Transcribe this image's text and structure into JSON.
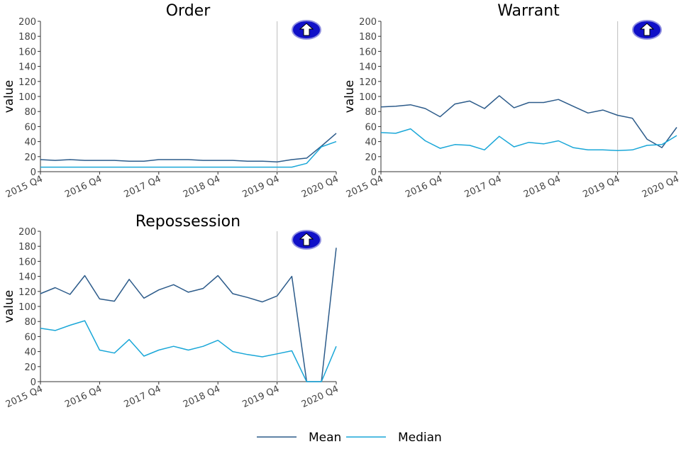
{
  "colors": {
    "mean": "#2c5b8a",
    "median": "#1aa7d8",
    "axis": "#333333",
    "vline": "#c8c8c8",
    "badge_fill": "#1010c8",
    "badge_ring": "#9090e0"
  },
  "legend": [
    {
      "key": "mean",
      "label": "Mean"
    },
    {
      "key": "median",
      "label": "Median"
    }
  ],
  "chart_data": [
    {
      "type": "line",
      "title": "Order",
      "ylabel": "value",
      "xlabel": "",
      "ylim": [
        0,
        200
      ],
      "yticks": [
        0,
        20,
        40,
        60,
        80,
        100,
        120,
        140,
        160,
        180,
        200
      ],
      "x": [
        "2015 Q4",
        "2016 Q1",
        "2016 Q2",
        "2016 Q3",
        "2016 Q4",
        "2017 Q1",
        "2017 Q2",
        "2017 Q3",
        "2017 Q4",
        "2018 Q1",
        "2018 Q2",
        "2018 Q3",
        "2018 Q4",
        "2019 Q1",
        "2019 Q2",
        "2019 Q3",
        "2019 Q4",
        "2020 Q1",
        "2020 Q2",
        "2020 Q3",
        "2020 Q4"
      ],
      "xtick_labels": [
        "2015 Q4",
        "2016 Q4",
        "2017 Q4",
        "2018 Q4",
        "2019 Q4",
        "2020 Q4"
      ],
      "vline_at": "2019 Q4",
      "badge_icon": "up-arrow-icon",
      "series": [
        {
          "name": "Mean",
          "key": "mean",
          "values": [
            16,
            15,
            16,
            15,
            15,
            15,
            14,
            14,
            16,
            16,
            16,
            15,
            15,
            15,
            14,
            14,
            13,
            16,
            18,
            34,
            51
          ]
        },
        {
          "name": "Median",
          "key": "median",
          "values": [
            6,
            6,
            6,
            6,
            6,
            6,
            6,
            6,
            6,
            6,
            6,
            6,
            6,
            6,
            6,
            6,
            6,
            6,
            11,
            33,
            40
          ]
        }
      ]
    },
    {
      "type": "line",
      "title": "Warrant",
      "ylabel": "value",
      "xlabel": "",
      "ylim": [
        0,
        200
      ],
      "yticks": [
        0,
        20,
        40,
        60,
        80,
        100,
        120,
        140,
        160,
        180,
        200
      ],
      "x": [
        "2015 Q4",
        "2016 Q1",
        "2016 Q2",
        "2016 Q3",
        "2016 Q4",
        "2017 Q1",
        "2017 Q2",
        "2017 Q3",
        "2017 Q4",
        "2018 Q1",
        "2018 Q2",
        "2018 Q3",
        "2018 Q4",
        "2019 Q1",
        "2019 Q2",
        "2019 Q3",
        "2019 Q4",
        "2020 Q1",
        "2020 Q2",
        "2020 Q3",
        "2020 Q4"
      ],
      "xtick_labels": [
        "2015 Q4",
        "2016 Q4",
        "2017 Q4",
        "2018 Q4",
        "2019 Q4",
        "2020 Q4"
      ],
      "vline_at": "2019 Q4",
      "badge_icon": "up-arrow-icon",
      "series": [
        {
          "name": "Mean",
          "key": "mean",
          "values": [
            86,
            87,
            89,
            84,
            73,
            90,
            94,
            84,
            101,
            85,
            92,
            92,
            96,
            87,
            78,
            82,
            75,
            71,
            43,
            32,
            59
          ]
        },
        {
          "name": "Median",
          "key": "median",
          "values": [
            52,
            51,
            57,
            41,
            31,
            36,
            35,
            29,
            47,
            33,
            39,
            37,
            41,
            32,
            29,
            29,
            28,
            29,
            35,
            36,
            48
          ]
        }
      ]
    },
    {
      "type": "line",
      "title": "Repossession",
      "ylabel": "value",
      "xlabel": "",
      "ylim": [
        0,
        200
      ],
      "yticks": [
        0,
        20,
        40,
        60,
        80,
        100,
        120,
        140,
        160,
        180,
        200
      ],
      "x": [
        "2015 Q4",
        "2016 Q1",
        "2016 Q2",
        "2016 Q3",
        "2016 Q4",
        "2017 Q1",
        "2017 Q2",
        "2017 Q3",
        "2017 Q4",
        "2018 Q1",
        "2018 Q2",
        "2018 Q3",
        "2018 Q4",
        "2019 Q1",
        "2019 Q2",
        "2019 Q3",
        "2019 Q4",
        "2020 Q1",
        "2020 Q2",
        "2020 Q3",
        "2020 Q4"
      ],
      "xtick_labels": [
        "2015 Q4",
        "2016 Q4",
        "2017 Q4",
        "2018 Q4",
        "2019 Q4",
        "2020 Q4"
      ],
      "vline_at": "2019 Q4",
      "badge_icon": "up-arrow-icon",
      "series": [
        {
          "name": "Mean",
          "key": "mean",
          "values": [
            117,
            125,
            116,
            141,
            110,
            107,
            136,
            111,
            122,
            129,
            119,
            124,
            141,
            117,
            112,
            106,
            114,
            140,
            0,
            0,
            178
          ]
        },
        {
          "name": "Median",
          "key": "median",
          "values": [
            71,
            68,
            75,
            81,
            42,
            38,
            56,
            34,
            42,
            47,
            42,
            47,
            55,
            40,
            36,
            33,
            37,
            41,
            0,
            0,
            47
          ]
        }
      ]
    }
  ]
}
